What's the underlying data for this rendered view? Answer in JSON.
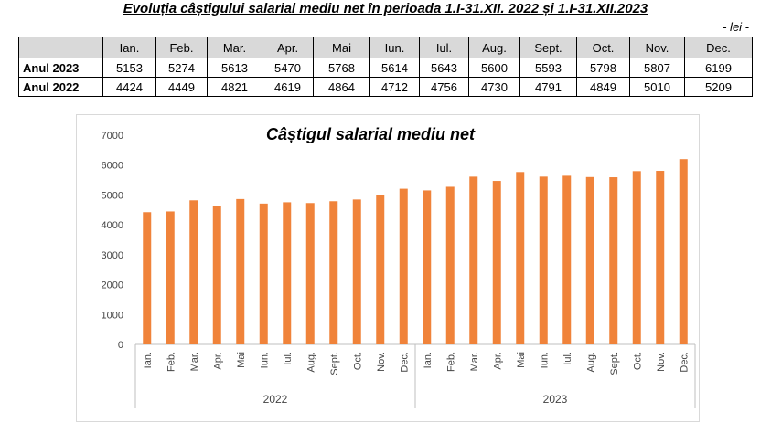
{
  "header": {
    "title": "Evoluția câștigului salarial mediu net în perioada 1.I-31.XII. 2022 și 1.I-31.XII.2023",
    "unit": "- lei -"
  },
  "table": {
    "columns": [
      "Ian.",
      "Feb.",
      "Mar.",
      "Apr.",
      "Mai",
      "Iun.",
      "Iul.",
      "Aug.",
      "Sept.",
      "Oct.",
      "Nov.",
      "Dec."
    ],
    "rows": [
      {
        "name": "Anul 2023",
        "values": [
          5153,
          5274,
          5613,
          5470,
          5768,
          5614,
          5643,
          5600,
          5593,
          5798,
          5807,
          6199
        ]
      },
      {
        "name": "Anul 2022",
        "values": [
          4424,
          4449,
          4821,
          4619,
          4864,
          4712,
          4756,
          4730,
          4791,
          4849,
          5010,
          5209
        ]
      }
    ]
  },
  "chart_data": {
    "type": "bar",
    "title": "Câștigul salarial mediu net",
    "categories": [
      "Ian.",
      "Feb.",
      "Mar.",
      "Apr.",
      "Mai",
      "Iun.",
      "Iul.",
      "Aug.",
      "Sept.",
      "Oct.",
      "Nov.",
      "Dec.",
      "Ian.",
      "Feb.",
      "Mar.",
      "Apr.",
      "Mai",
      "Iun.",
      "Iul.",
      "Aug.",
      "Sept.",
      "Oct.",
      "Nov.",
      "Dec."
    ],
    "groups": [
      "2022",
      "2023"
    ],
    "values": [
      4424,
      4449,
      4821,
      4619,
      4864,
      4712,
      4756,
      4730,
      4791,
      4849,
      5010,
      5209,
      5153,
      5274,
      5613,
      5470,
      5768,
      5614,
      5643,
      5600,
      5593,
      5798,
      5807,
      6199
    ],
    "color": "#f0833a",
    "ylim": [
      0,
      7000
    ],
    "yticks": [
      0,
      1000,
      2000,
      3000,
      4000,
      5000,
      6000,
      7000
    ],
    "grid": false
  }
}
